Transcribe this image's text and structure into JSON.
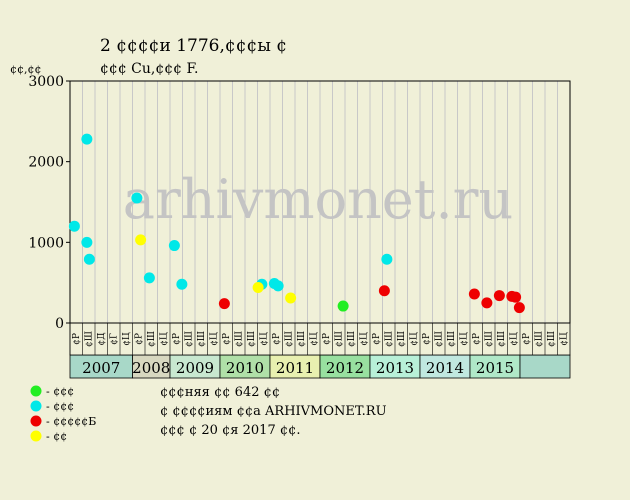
{
  "chart_data": {
    "type": "scatter",
    "title_line1": "2 ¢¢¢¢и 1776,¢¢¢ы ¢",
    "title_line2": "¢¢¢ Cu,¢¢¢ F.",
    "ylabel": "¢¢,¢¢",
    "watermark": "arhivmonet.ru",
    "ylim": [
      0,
      3000
    ],
    "y_ticks": [
      0,
      1000,
      2000,
      3000
    ],
    "grid": true,
    "x_sublabels": [
      "¢Р",
      "¢Ш",
      "¢Д",
      "¢Г",
      "¢Ц",
      "¢Р",
      "¢Ш",
      "¢Ц",
      "¢Р",
      "¢Ш",
      "¢Ш",
      "¢Ц",
      "¢Р",
      "¢Ш",
      "¢Ш",
      "¢Ц",
      "¢Р",
      "¢Ш",
      "¢Ш",
      "¢Ц",
      "¢Р",
      "¢Ш",
      "¢Ш",
      "¢Ц",
      "¢Р",
      "¢Ш",
      "¢Ш",
      "¢Ц",
      "¢Р",
      "¢Ш",
      "¢Ш",
      "¢Ц",
      "¢Р",
      "¢Ш",
      "¢Ш",
      "¢Ц",
      "¢Р",
      "¢Ш",
      "¢Ш",
      "¢Ц"
    ],
    "years": [
      {
        "label": "2007",
        "start": 0,
        "end": 5,
        "color": "#a8d8c8"
      },
      {
        "label": "2008",
        "start": 5,
        "end": 8,
        "color": "#d8d8c0"
      },
      {
        "label": "2009",
        "start": 8,
        "end": 12,
        "color": "#c8e8d0"
      },
      {
        "label": "2010",
        "start": 12,
        "end": 16,
        "color": "#b0e0a8"
      },
      {
        "label": "2011",
        "start": 16,
        "end": 20,
        "color": "#e8f0b0"
      },
      {
        "label": "2012",
        "start": 20,
        "end": 24,
        "color": "#98e0a0"
      },
      {
        "label": "2013",
        "start": 24,
        "end": 28,
        "color": "#b8f0d8"
      },
      {
        "label": "2014",
        "start": 28,
        "end": 32,
        "color": "#c0e8e0"
      },
      {
        "label": "2015",
        "start": 32,
        "end": 36,
        "color": "#b0e8c8"
      }
    ],
    "series": [
      {
        "name": "¢¢¢",
        "color": "#00e8e8",
        "points": [
          {
            "x": 0.0,
            "y": 1200
          },
          {
            "x": 1.0,
            "y": 2280
          },
          {
            "x": 1.0,
            "y": 1000
          },
          {
            "x": 1.2,
            "y": 790
          },
          {
            "x": 5.0,
            "y": 1550
          },
          {
            "x": 6.0,
            "y": 560
          },
          {
            "x": 8.0,
            "y": 960
          },
          {
            "x": 8.6,
            "y": 480
          },
          {
            "x": 15.0,
            "y": 480
          },
          {
            "x": 16.0,
            "y": 490
          },
          {
            "x": 16.3,
            "y": 460
          },
          {
            "x": 25.0,
            "y": 790
          }
        ]
      },
      {
        "name": "¢¢¢¢¢Б",
        "color": "#ee0000",
        "points": [
          {
            "x": 12.0,
            "y": 240
          },
          {
            "x": 24.8,
            "y": 400
          },
          {
            "x": 32.0,
            "y": 360
          },
          {
            "x": 33.0,
            "y": 250
          },
          {
            "x": 34.0,
            "y": 340
          },
          {
            "x": 35.0,
            "y": 330
          },
          {
            "x": 35.3,
            "y": 320
          },
          {
            "x": 35.6,
            "y": 190
          }
        ]
      },
      {
        "name": "¢¢¢",
        "color": "#22ee22",
        "points": [
          {
            "x": 21.5,
            "y": 210
          }
        ]
      },
      {
        "name": "¢¢",
        "color": "#ffff00",
        "points": [
          {
            "x": 5.3,
            "y": 1030
          },
          {
            "x": 14.7,
            "y": 440
          },
          {
            "x": 17.3,
            "y": 310
          }
        ]
      }
    ],
    "legend": [
      {
        "text": "- ¢¢¢",
        "color": "#22ee22"
      },
      {
        "text": "- ¢¢¢",
        "color": "#00e8e8"
      },
      {
        "text": "- ¢¢¢¢¢Б",
        "color": "#ee0000"
      },
      {
        "text": "- ¢¢",
        "color": "#ffff00"
      }
    ],
    "notes": [
      "¢¢¢няя ¢¢ 642 ¢¢",
      "¢ ¢¢¢¢иям ¢¢а ARHIVMONET.RU",
      "¢¢¢ ¢ 20 ¢я 2017 ¢¢."
    ]
  }
}
